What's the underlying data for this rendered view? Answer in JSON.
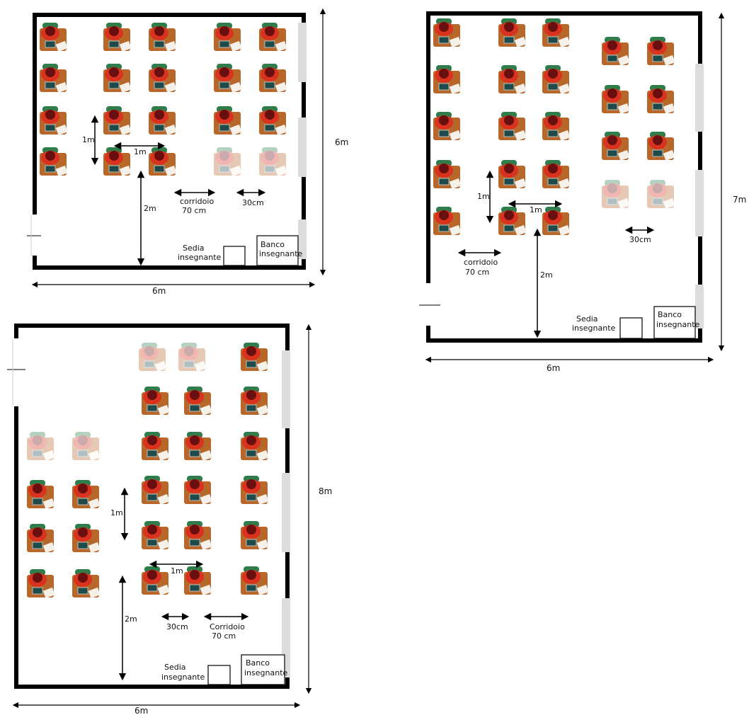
{
  "colors": {
    "wall": "#000000",
    "window": "#dcdcdc",
    "desk": "#b8672a",
    "student_body": "#d9321e",
    "student_head": "#6a0f0f",
    "chair": "#2f7d4a",
    "laptop": "#1f4a4a",
    "paper": "#f4f1ea",
    "faded_opacity": 0.35
  },
  "labels": {
    "corridor_lower": "corridoio",
    "corridor_upper": "Corridoio",
    "corridor_width": "70 cm",
    "gap_30": "30cm",
    "one_meter": "1m",
    "two_meters": "2m",
    "teacher_chair_line1": "Sedia",
    "teacher_chair_line2": "insegnante",
    "teacher_desk_line1": "Banco",
    "teacher_desk_line2": "insegnante"
  },
  "rooms": [
    {
      "id": "room-6x6",
      "width_label": "6m",
      "height_label": "6m",
      "desk_counts": {
        "occupied": 18,
        "faded": 2
      }
    },
    {
      "id": "room-6x7",
      "width_label": "6m",
      "height_label": "7m",
      "desk_counts": {
        "occupied": 20,
        "faded": 2
      }
    },
    {
      "id": "room-6x8",
      "width_label": "6m",
      "height_label": "8m",
      "desk_counts": {
        "occupied": 20,
        "faded": 4
      }
    }
  ]
}
